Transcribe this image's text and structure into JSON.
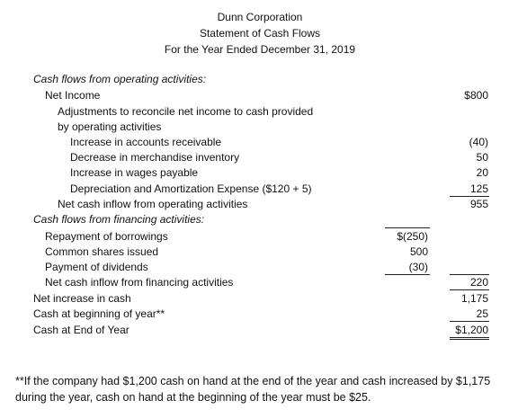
{
  "header": {
    "company": "Dunn Corporation",
    "title": "Statement of Cash Flows",
    "period": "For the Year Ended December 31, 2019"
  },
  "rows": [
    {
      "label": "Cash flows from operating activities:"
    },
    {
      "label": "Net Income",
      "col2": "$800"
    },
    {
      "label": "Adjustments to reconcile net income to cash provided"
    },
    {
      "label": "by operating activities"
    },
    {
      "label": "Increase in accounts receivable",
      "col2": "(40)"
    },
    {
      "label": "Decrease in merchandise inventory",
      "col2": "50"
    },
    {
      "label": "Increase in wages payable",
      "col2": "20"
    },
    {
      "label": "Depreciation and Amortization Expense ($120 + 5)",
      "col2": "125"
    },
    {
      "label": "Net cash inflow from operating activities",
      "col2": "955"
    },
    {
      "label": "Cash flows from financing activities:"
    },
    {
      "label": "Repayment of borrowings",
      "col1": "$(250)"
    },
    {
      "label": "Common shares issued",
      "col1": "500"
    },
    {
      "label": "Payment of dividends",
      "col1": "(30)"
    },
    {
      "label": "Net cash inflow from financing activities",
      "col2": "220"
    },
    {
      "label": "Net increase in cash",
      "col2": "1,175"
    },
    {
      "label": "Cash at beginning of year**",
      "col2": "25"
    },
    {
      "label": "Cash at End of Year",
      "col2": "$1,200"
    }
  ],
  "footnote": "**If the company had $1,200 cash on hand at the end of the year and cash increased by $1,175 during the year, cash on hand at the beginning of the year must be $25."
}
